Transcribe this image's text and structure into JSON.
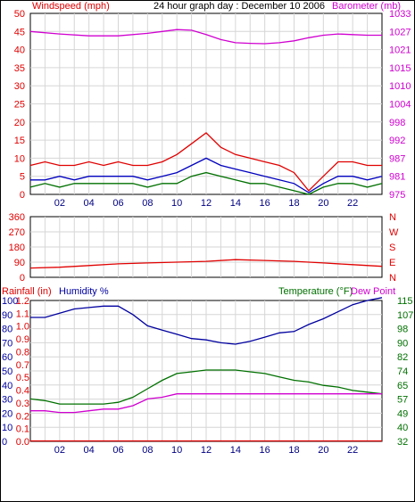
{
  "chart_data": [
    {
      "type": "line",
      "panel": "wind-barometer",
      "title": "24 hour graph day : December 10 2006",
      "ylabel_left": "Windspeed (mph)",
      "ylabel_right": "Barometer (mb)",
      "x": [
        "02",
        "04",
        "06",
        "08",
        "10",
        "12",
        "14",
        "16",
        "18",
        "20",
        "22"
      ],
      "y_left_ticks": [
        "0",
        "5",
        "10",
        "15",
        "20",
        "25",
        "30",
        "35",
        "40",
        "45",
        "50"
      ],
      "y_right_ticks": [
        "975",
        "981",
        "987",
        "992",
        "998",
        "1004",
        "1010",
        "1015",
        "1021",
        "1027",
        "1033"
      ],
      "ylim_left": [
        0,
        50
      ],
      "ylim_right": [
        975,
        1033
      ],
      "grid": true,
      "series": [
        {
          "name": "barometer",
          "axis": "right",
          "color": "#d000d0",
          "x": [
            0,
            2,
            4,
            6,
            8,
            9,
            10,
            11,
            12,
            13,
            14,
            15,
            16,
            17,
            18,
            19,
            20,
            21,
            22,
            23,
            24
          ],
          "values": [
            1027.2,
            1026.4,
            1025.8,
            1025.8,
            1026.6,
            1027.2,
            1027.8,
            1027.6,
            1026.2,
            1024.6,
            1023.6,
            1023.4,
            1023.3,
            1023.6,
            1024.2,
            1025.2,
            1026.0,
            1026.4,
            1026.2,
            1026.0,
            1026.0
          ]
        },
        {
          "name": "wind gust",
          "axis": "left",
          "color": "#e00000",
          "x": [
            0,
            1,
            2,
            3,
            4,
            5,
            6,
            7,
            8,
            9,
            10,
            11,
            12,
            13,
            14,
            15,
            16,
            17,
            18,
            19,
            20,
            21,
            22,
            23,
            24
          ],
          "values": [
            8,
            9,
            8,
            8,
            9,
            8,
            9,
            8,
            8,
            9,
            11,
            14,
            17,
            13,
            11,
            10,
            9,
            8,
            6,
            1,
            5,
            9,
            9,
            8,
            8
          ]
        },
        {
          "name": "average wind",
          "axis": "left",
          "color": "#0000c0",
          "x": [
            0,
            1,
            2,
            3,
            4,
            5,
            6,
            7,
            8,
            9,
            10,
            11,
            12,
            13,
            14,
            15,
            16,
            17,
            18,
            19,
            20,
            21,
            22,
            23,
            24
          ],
          "values": [
            4,
            4,
            5,
            4,
            5,
            5,
            5,
            5,
            4,
            5,
            6,
            8,
            10,
            8,
            7,
            6,
            5,
            4,
            3,
            0.5,
            3,
            5,
            5,
            4,
            5
          ]
        },
        {
          "name": "wind lull",
          "axis": "left",
          "color": "#007000",
          "x": [
            0,
            1,
            2,
            3,
            4,
            5,
            6,
            7,
            8,
            9,
            10,
            11,
            12,
            13,
            14,
            15,
            16,
            17,
            18,
            19,
            20,
            21,
            22,
            23,
            24
          ],
          "values": [
            2,
            3,
            2,
            3,
            3,
            3,
            3,
            3,
            2,
            3,
            3,
            5,
            6,
            5,
            4,
            3,
            3,
            2,
            1,
            0,
            2,
            3,
            3,
            2,
            3
          ]
        }
      ]
    },
    {
      "type": "line",
      "panel": "wind-direction",
      "x": [
        "02",
        "04",
        "06",
        "08",
        "10",
        "12",
        "14",
        "16",
        "18",
        "20",
        "22"
      ],
      "y_left_ticks": [
        "0",
        "90",
        "180",
        "270",
        "360"
      ],
      "y_right_ticks": [
        "N",
        "E",
        "S",
        "W",
        "N"
      ],
      "ylim": [
        0,
        360
      ],
      "grid": true,
      "series": [
        {
          "name": "wind direction",
          "color": "#e00000",
          "x": [
            0,
            2,
            4,
            6,
            8,
            10,
            12,
            14,
            16,
            18,
            20,
            22,
            24
          ],
          "values": [
            55,
            60,
            70,
            80,
            85,
            90,
            95,
            105,
            100,
            95,
            85,
            75,
            65
          ]
        }
      ]
    },
    {
      "type": "line",
      "panel": "rain-humidity-temperature",
      "ylabel_left_1": "Rainfall (in)",
      "ylabel_left_2": "Humidity %",
      "ylabel_right_1": "Temperature (°F)",
      "ylabel_right_2": "Dew Point",
      "x": [
        "02",
        "04",
        "06",
        "08",
        "10",
        "12",
        "14",
        "16",
        "18",
        "20",
        "22"
      ],
      "humidity_ticks": [
        "0",
        "10",
        "20",
        "30",
        "40",
        "50",
        "60",
        "70",
        "80",
        "90",
        "100"
      ],
      "rain_ticks": [
        "0.0",
        "0.1",
        "0.2",
        "0.3",
        "0.4",
        "0.5",
        "0.7",
        "0.8",
        "0.9",
        "1.0",
        "1.1",
        "1.2"
      ],
      "temp_ticks": [
        "32",
        "40",
        "49",
        "57",
        "65",
        "74",
        "82",
        "90",
        "98",
        "107",
        "115"
      ],
      "ylim_humidity": [
        0,
        100
      ],
      "ylim_temperature": [
        32,
        115
      ],
      "grid": true,
      "series": [
        {
          "name": "humidity",
          "axis": "humidity",
          "color": "#0000a0",
          "x": [
            0,
            1,
            2,
            3,
            4,
            5,
            6,
            7,
            8,
            9,
            10,
            11,
            12,
            13,
            14,
            15,
            16,
            17,
            18,
            19,
            20,
            21,
            22,
            23,
            24
          ],
          "values": [
            88,
            88,
            91,
            94,
            95,
            96,
            96,
            90,
            82,
            79,
            76,
            73,
            72,
            70,
            69,
            71,
            74,
            77,
            78,
            83,
            87,
            92,
            97,
            100,
            102
          ]
        },
        {
          "name": "temperature",
          "axis": "temperature",
          "color": "#007000",
          "x": [
            0,
            1,
            2,
            3,
            4,
            5,
            6,
            7,
            8,
            9,
            10,
            11,
            12,
            13,
            14,
            15,
            16,
            17,
            18,
            19,
            20,
            21,
            22,
            23,
            24
          ],
          "values": [
            57,
            56,
            54,
            54,
            54,
            54,
            55,
            58,
            63,
            68,
            72,
            73,
            74,
            74,
            74,
            73,
            72,
            70,
            68,
            67,
            65,
            64,
            62,
            61,
            60
          ]
        },
        {
          "name": "dew point",
          "axis": "temperature",
          "color": "#d000d0",
          "x": [
            0,
            1,
            2,
            3,
            4,
            5,
            6,
            7,
            8,
            9,
            10,
            11,
            12,
            13,
            14,
            15,
            16,
            17,
            18,
            19,
            20,
            21,
            22,
            23,
            24
          ],
          "values": [
            50,
            50,
            49,
            49,
            50,
            51,
            51,
            53,
            57,
            58,
            60,
            60,
            60,
            60,
            60,
            60,
            60,
            60,
            60,
            60,
            60,
            60,
            60,
            60,
            60
          ]
        },
        {
          "name": "rainfall",
          "axis": "rain",
          "color": "#e00000",
          "x": [
            0,
            24
          ],
          "values": [
            0,
            0
          ]
        }
      ]
    }
  ]
}
